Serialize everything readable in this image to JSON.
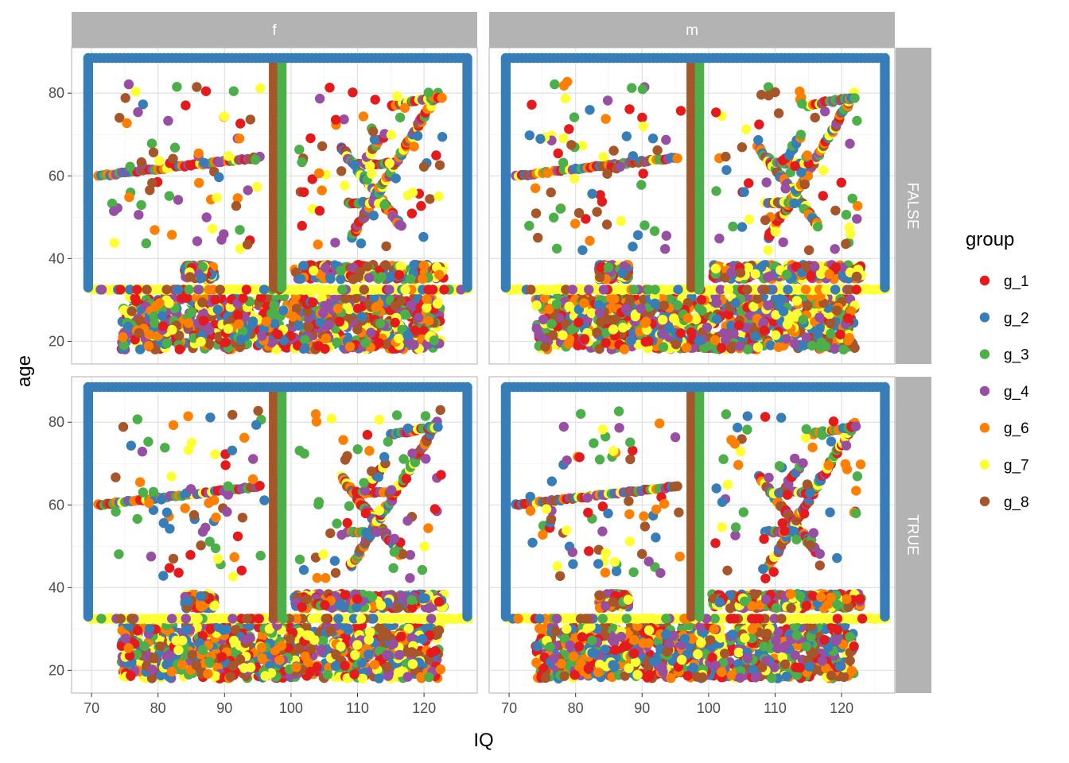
{
  "chart_data": {
    "type": "scatter",
    "xlabel": "IQ",
    "ylabel": "age",
    "xlim": [
      67,
      128
    ],
    "ylim": [
      14.5,
      91
    ],
    "x_ticks": [
      70,
      80,
      90,
      100,
      110,
      120
    ],
    "y_ticks": [
      20,
      40,
      60,
      80
    ],
    "grid": true,
    "facet_columns": [
      "f",
      "m"
    ],
    "facet_rows": [
      "FALSE",
      "TRUE"
    ],
    "legend": {
      "title": "group",
      "placement": "right",
      "items": [
        {
          "name": "g_1",
          "color": "#E41A1C"
        },
        {
          "name": "g_2",
          "color": "#377EB8"
        },
        {
          "name": "g_3",
          "color": "#4DAF4A"
        },
        {
          "name": "g_4",
          "color": "#984EA3"
        },
        {
          "name": "g_6",
          "color": "#FF7F00"
        },
        {
          "name": "g_7",
          "color": "#FFFF33"
        },
        {
          "name": "g_8",
          "color": "#A65628"
        }
      ]
    },
    "structure_by_group": {
      "g_2": "rectangular border: x 69.5–126.5 at age 88.5, and vertical edges at x 69.5 and 126.5 for age 33–88.5",
      "g_8": "vertical line at x ≈ 97.5 for age 33–88",
      "g_3": "vertical line at x ≈ 98.5 for age 33–88",
      "g_7": "horizontal line at age ≈ 32.5 for x 70–127",
      "mixed": "dense dot block at x 74–122, age 18–31; dot bands at x 84–88 and 100–123, age 35–38; lines 60→64.5 over x 71–95; 'X' pattern x 107–122, age 45–80; scattered dots"
    }
  }
}
